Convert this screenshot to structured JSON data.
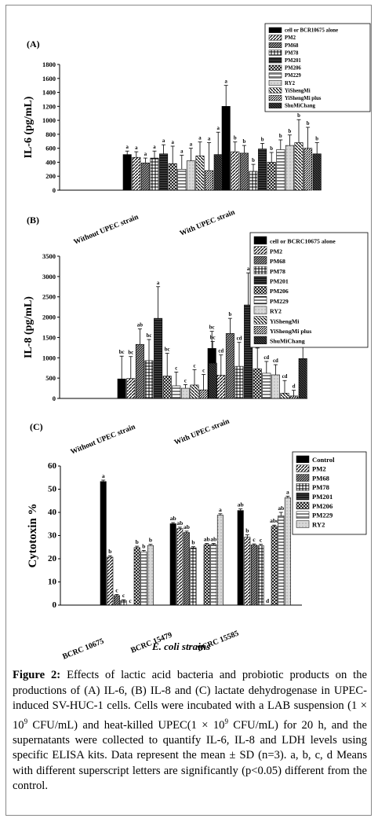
{
  "caption": {
    "label": "Figure 2:",
    "text": "Effects of lactic acid bacteria and probiotic products on the productions of (A) IL-6, (B) IL-8 and (C) lactate dehydrogenase in UPEC-induced SV-HUC-1 cells. Cells were incubated with a LAB suspension (1 × 10",
    "exp1": "9",
    "text2": " CFU/mL) and heat-killed UPEC(1 × 10",
    "exp2": "9",
    "text3": " CFU/mL) for 20 h, and the supernatants were collected to quantify IL-6, IL-8 and LDH levels using specific ELISA kits. Data represent the mean ± SD (n=3). a, b, c, d Means with different superscript letters are significantly (p<0.05) different from the control."
  },
  "chart_data": [
    {
      "panel": "(A)",
      "type": "bar",
      "ylabel": "IL-6 (pg/mL)",
      "ylim": [
        0,
        1800
      ],
      "yticks": [
        0,
        200,
        400,
        600,
        800,
        1000,
        1200,
        1400,
        1600,
        1800
      ],
      "categories": [
        "Without UPEC strain",
        "With UPEC strain"
      ],
      "legend": [
        "cell or BCR10675 alone",
        "PM2",
        "PM68",
        "PM78",
        "PM201",
        "PM206",
        "PM229",
        "RY2",
        "YiShengMi",
        "YiShengMi plus",
        "ShuMiChang"
      ],
      "series": [
        {
          "name": "cell or BCR10675 alone",
          "values": [
            510,
            1200
          ],
          "err": [
            50,
            300
          ],
          "sig": [
            "a",
            "a"
          ]
        },
        {
          "name": "PM2",
          "values": [
            470,
            550
          ],
          "err": [
            80,
            140
          ],
          "sig": [
            "a",
            "b"
          ]
        },
        {
          "name": "PM68",
          "values": [
            390,
            530
          ],
          "err": [
            70,
            110
          ],
          "sig": [
            "a",
            "b"
          ]
        },
        {
          "name": "PM78",
          "values": [
            460,
            270
          ],
          "err": [
            100,
            100
          ],
          "sig": [
            "a",
            "b"
          ]
        },
        {
          "name": "PM201",
          "values": [
            520,
            590
          ],
          "err": [
            130,
            80
          ],
          "sig": [
            "a",
            "b"
          ]
        },
        {
          "name": "PM206",
          "values": [
            380,
            400
          ],
          "err": [
            250,
            140
          ],
          "sig": [
            "a",
            "b"
          ]
        },
        {
          "name": "PM229",
          "values": [
            300,
            580
          ],
          "err": [
            200,
            140
          ],
          "sig": [
            "a",
            "b"
          ]
        },
        {
          "name": "RY2",
          "values": [
            420,
            640
          ],
          "err": [
            180,
            150
          ],
          "sig": [
            "a",
            "b"
          ]
        },
        {
          "name": "YiShengMi",
          "values": [
            490,
            680
          ],
          "err": [
            200,
            330
          ],
          "sig": [
            "a",
            "b"
          ]
        },
        {
          "name": "YiShengMi plus",
          "values": [
            280,
            600
          ],
          "err": [
            400,
            300
          ],
          "sig": [
            "a",
            "b"
          ]
        },
        {
          "name": "ShuMiChang",
          "values": [
            510,
            520
          ],
          "err": [
            320,
            160
          ],
          "sig": [
            "a",
            "b"
          ]
        }
      ]
    },
    {
      "panel": "(B)",
      "type": "bar",
      "ylabel": "IL-8 (pg/mL)",
      "ylim": [
        0,
        3500
      ],
      "yticks": [
        0,
        500,
        1000,
        1500,
        2000,
        2500,
        3000,
        3500
      ],
      "categories": [
        "Without UPEC strain",
        "With UPEC strain"
      ],
      "legend": [
        "cell or BCRC10675 alone",
        "PM2",
        "PM68",
        "PM78",
        "PM201",
        "PM206",
        "PM229",
        "RY2",
        "YiShengMi",
        "YiShengMi plus",
        "ShuMiChang"
      ],
      "series": [
        {
          "name": "cell or BCRC10675 alone",
          "values": [
            480,
            1230
          ],
          "err": [
            560,
            420
          ],
          "sig": [
            "bc",
            "bc"
          ]
        },
        {
          "name": "PM2",
          "values": [
            490,
            570
          ],
          "err": [
            540,
            500
          ],
          "sig": [
            "bc",
            "cd"
          ]
        },
        {
          "name": "PM68",
          "values": [
            1330,
            1600
          ],
          "err": [
            380,
            370
          ],
          "sig": [
            "ab",
            "b"
          ]
        },
        {
          "name": "PM78",
          "values": [
            930,
            790
          ],
          "err": [
            520,
            590
          ],
          "sig": [
            "bc",
            "cd"
          ]
        },
        {
          "name": "PM201",
          "values": [
            1970,
            2300
          ],
          "err": [
            780,
            790
          ],
          "sig": [
            "a",
            "a"
          ]
        },
        {
          "name": "PM206",
          "values": [
            550,
            730
          ],
          "err": [
            560,
            510
          ],
          "sig": [
            "bc",
            "cd"
          ]
        },
        {
          "name": "PM229",
          "values": [
            310,
            620
          ],
          "err": [
            340,
            290
          ],
          "sig": [
            "c",
            "cd"
          ]
        },
        {
          "name": "RY2",
          "values": [
            250,
            580
          ],
          "err": [
            90,
            250
          ],
          "sig": [
            "c",
            "cd"
          ]
        },
        {
          "name": "YiShengMi",
          "values": [
            330,
            130
          ],
          "err": [
            380,
            310
          ],
          "sig": [
            "c",
            "cd"
          ]
        },
        {
          "name": "YiShengMi plus",
          "values": [
            210,
            60
          ],
          "err": [
            380,
            140
          ],
          "sig": [
            "c",
            "d"
          ]
        },
        {
          "name": "ShuMiChang",
          "values": [
            870,
            980
          ],
          "err": [
            530,
            460
          ],
          "sig": [
            "bc",
            "bc"
          ]
        }
      ]
    },
    {
      "panel": "(C)",
      "type": "bar",
      "ylabel": "Cytotoxin %",
      "xlabel": "E. coli strains",
      "ylim": [
        0,
        60
      ],
      "yticks": [
        0,
        10,
        20,
        30,
        40,
        50,
        60
      ],
      "categories": [
        "BCRC 10675",
        "BCRC 15479",
        "BCRC 15585"
      ],
      "legend": [
        "Control",
        "PM2",
        "PM68",
        "PM78",
        "PM201",
        "PM206",
        "PM229",
        "RY2"
      ],
      "series": [
        {
          "name": "Control",
          "values": [
            53.3,
            35.1,
            40.8
          ],
          "err": [
            0.6,
            0.5,
            0.7
          ],
          "sig": [
            "a",
            "ab",
            "ab"
          ]
        },
        {
          "name": "PM2",
          "values": [
            20.7,
            33.0,
            29.3
          ],
          "err": [
            0.6,
            0.6,
            1.0
          ],
          "sig": [
            "b",
            "ab",
            "b"
          ]
        },
        {
          "name": "PM68",
          "values": [
            4.1,
            31.3,
            25.9
          ],
          "err": [
            0.5,
            0.6,
            0.5
          ],
          "sig": [
            "c",
            "ab",
            "c"
          ]
        },
        {
          "name": "PM78",
          "values": [
            2.0,
            24.7,
            25.7
          ],
          "err": [
            0.3,
            0.5,
            0.5
          ],
          "sig": [
            "c",
            "b",
            "c"
          ]
        },
        {
          "name": "PM201",
          "values": [
            0,
            0,
            0
          ],
          "err": [
            0,
            0,
            0
          ],
          "sig": [
            "c",
            "",
            "d"
          ]
        },
        {
          "name": "PM206",
          "values": [
            24.8,
            26.1,
            34.0
          ],
          "err": [
            0.6,
            0.5,
            0.5
          ],
          "sig": [
            "b",
            "ab",
            "abc"
          ]
        },
        {
          "name": "PM229",
          "values": [
            23.0,
            26.1,
            38.5
          ],
          "err": [
            0.6,
            0.5,
            1.5
          ],
          "sig": [
            "b",
            "ab",
            "ab"
          ]
        },
        {
          "name": "RY2",
          "values": [
            25.7,
            38.8,
            46.3
          ],
          "err": [
            0.5,
            0.6,
            0.7
          ],
          "sig": [
            "b",
            "a",
            "a"
          ]
        }
      ]
    }
  ]
}
